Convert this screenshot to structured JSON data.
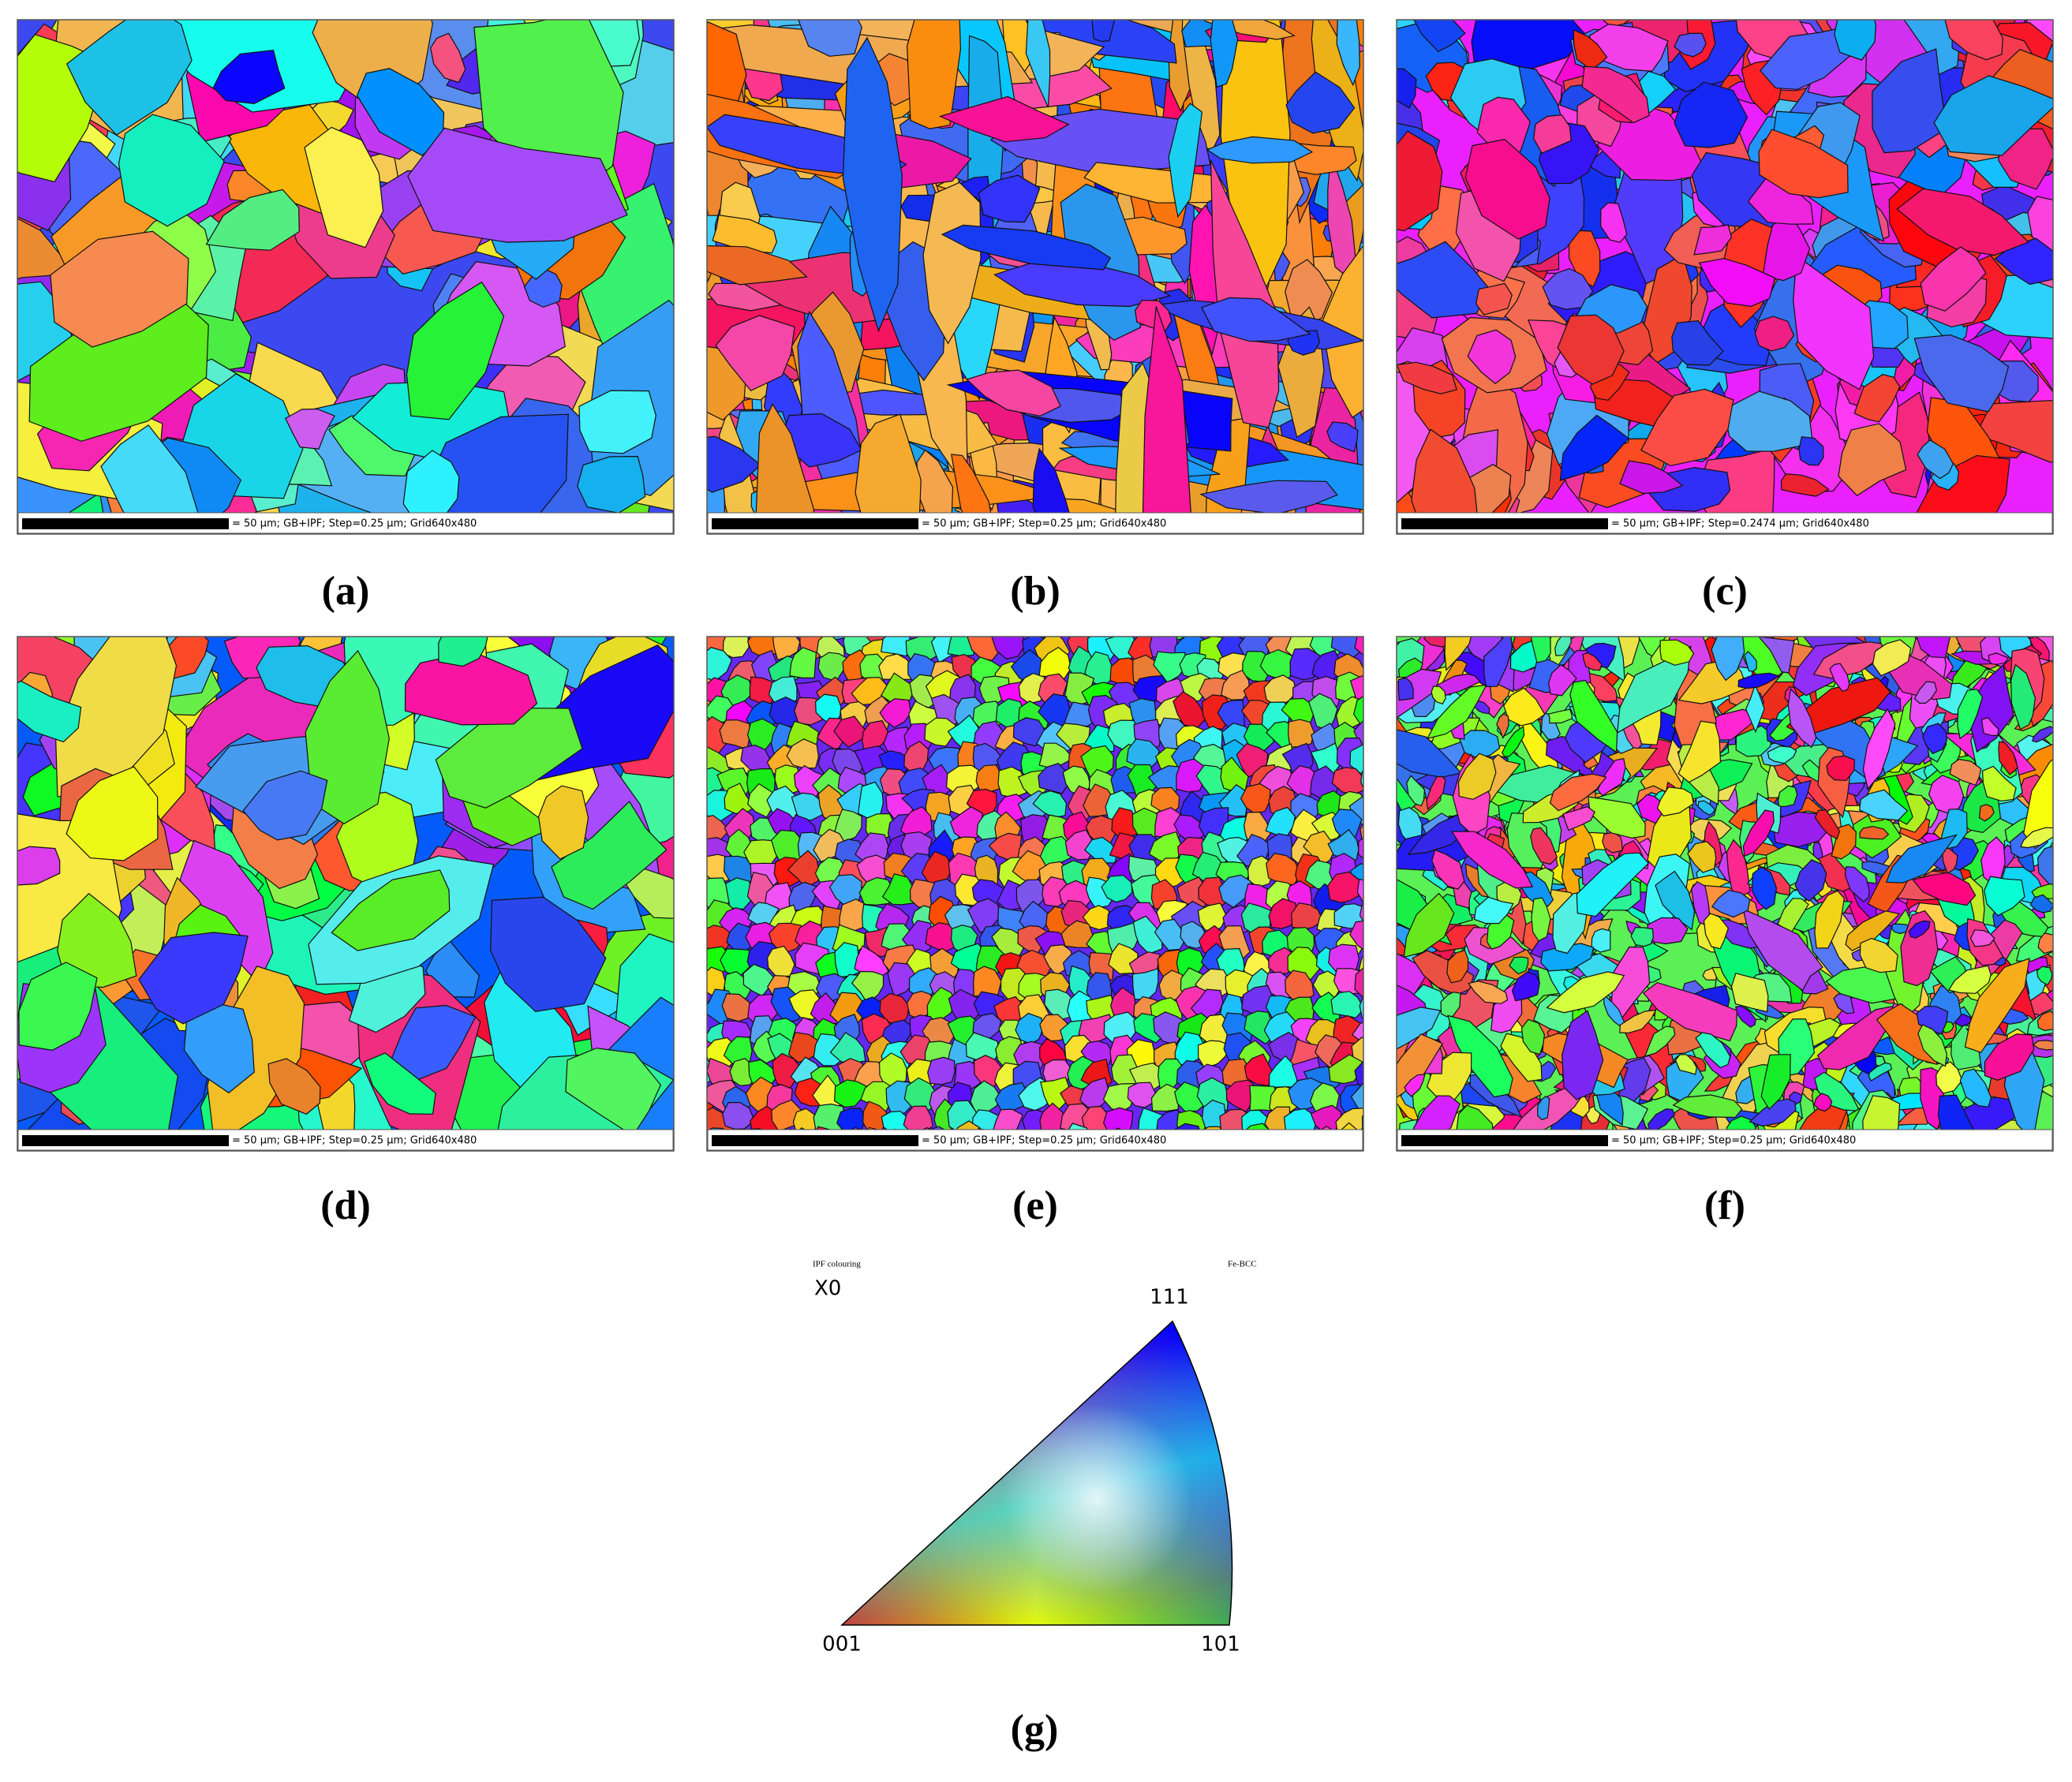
{
  "panels": [
    {
      "label": "(a)",
      "scale_text": "= 50 μm; GB+IPF; Step=0.25 μm; Grid640x480"
    },
    {
      "label": "(b)",
      "scale_text": "= 50 μm; GB+IPF; Step=0.25 μm; Grid640x480"
    },
    {
      "label": "(c)",
      "scale_text": "= 50 μm; GB+IPF; Step=0.2474 μm; Grid640x480"
    },
    {
      "label": "(d)",
      "scale_text": "= 50 μm; GB+IPF; Step=0.25 μm; Grid640x480"
    },
    {
      "label": "(e)",
      "scale_text": "= 50 μm; GB+IPF; Step=0.25 μm; Grid640x480"
    },
    {
      "label": "(f)",
      "scale_text": "= 50 μm; GB+IPF; Step=0.25 μm; Grid640x480"
    }
  ],
  "legend": {
    "title": "IPF colouring",
    "phase": "Fe-BCC",
    "direction": "X0",
    "corners": {
      "top": "111",
      "left": "001",
      "right": "101"
    },
    "label": "(g)"
  }
}
